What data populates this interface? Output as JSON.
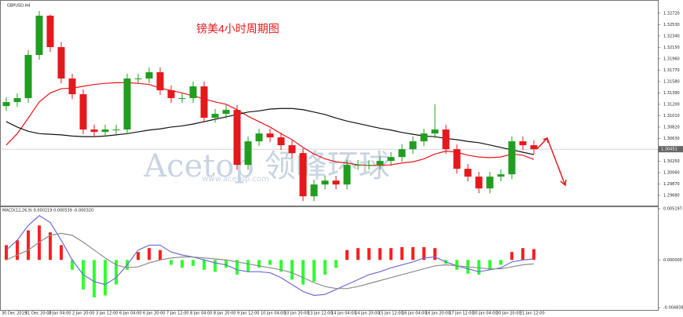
{
  "chart_data": [
    {
      "type": "candlestick",
      "symbol": "GBPUSD,H4",
      "title": "镑美4小时周期图",
      "watermark": "Acetop 领峰环球",
      "watermark_url": "www.acetop.com",
      "up_color": "#1f9e1f",
      "down_color": "#e3191c",
      "ylim": [
        1.2951,
        1.3294
      ],
      "yticks": [
        {
          "value": 1.3272,
          "label": "1.32720"
        },
        {
          "value": 1.3253,
          "label": "1.32530"
        },
        {
          "value": 1.3234,
          "label": "1.32340"
        },
        {
          "value": 1.3215,
          "label": "1.32150"
        },
        {
          "value": 1.3196,
          "label": "1.31960"
        },
        {
          "value": 1.3177,
          "label": "1.31770"
        },
        {
          "value": 1.3158,
          "label": "1.31580"
        },
        {
          "value": 1.3139,
          "label": "1.31390"
        },
        {
          "value": 1.312,
          "label": "1.31200"
        },
        {
          "value": 1.3101,
          "label": "1.31010"
        },
        {
          "value": 1.3082,
          "label": "1.30820"
        },
        {
          "value": 1.3063,
          "label": "1.30630"
        },
        {
          "value": 1.3044,
          "label": "1.30440"
        },
        {
          "value": 1.3025,
          "label": "1.30250"
        },
        {
          "value": 1.3006,
          "label": "1.30060"
        },
        {
          "value": 1.2987,
          "label": "1.29870"
        },
        {
          "value": 1.2968,
          "label": "1.29680"
        }
      ],
      "last_price": 1.30451,
      "open": [
        1.3117,
        1.31237,
        1.31303,
        1.32023,
        1.32678,
        1.32154,
        1.3163,
        1.31368,
        1.30779,
        1.30739,
        1.30779,
        1.30779,
        1.3163,
        1.3163,
        1.31735,
        1.31434,
        1.31303,
        1.31303,
        1.31499,
        1.30975,
        1.31041,
        1.31106,
        1.30189,
        1.30582,
        1.30713,
        1.30648,
        1.30517,
        1.30386,
        1.29665,
        1.29862,
        1.29927,
        1.29862,
        1.30189,
        1.30189,
        1.30189,
        1.30255,
        1.3032,
        1.30451,
        1.30582,
        1.30713,
        1.30779,
        1.30451,
        1.30124,
        1.29993,
        1.29796,
        1.29993,
        1.30032,
        1.30582,
        1.30517
      ],
      "high": [
        1.31317,
        1.31383,
        1.32103,
        1.32758,
        1.327,
        1.32234,
        1.3171,
        1.31448,
        1.30859,
        1.30859,
        1.30859,
        1.3171,
        1.3171,
        1.31815,
        1.31815,
        1.31514,
        1.31383,
        1.31579,
        1.31579,
        1.31121,
        1.31186,
        1.31186,
        1.30662,
        1.30793,
        1.30793,
        1.30728,
        1.30597,
        1.30466,
        1.29942,
        1.30007,
        1.30007,
        1.30269,
        1.30269,
        1.30269,
        1.30335,
        1.304,
        1.30531,
        1.30662,
        1.30793,
        1.312,
        1.30859,
        1.30531,
        1.30204,
        1.30073,
        1.30073,
        1.30112,
        1.30662,
        1.30662,
        1.30597
      ],
      "low": [
        1.3109,
        1.31157,
        1.31223,
        1.31943,
        1.32074,
        1.3155,
        1.31288,
        1.30699,
        1.30659,
        1.30659,
        1.30699,
        1.30699,
        1.3155,
        1.3155,
        1.31354,
        1.31223,
        1.31223,
        1.31223,
        1.30895,
        1.30895,
        1.30961,
        1.30109,
        1.30109,
        1.30502,
        1.30568,
        1.30437,
        1.30306,
        1.29585,
        1.29585,
        1.29782,
        1.29782,
        1.29782,
        1.30109,
        1.30109,
        1.30109,
        1.30175,
        1.3024,
        1.30371,
        1.30502,
        1.30633,
        1.30371,
        1.30044,
        1.29913,
        1.29716,
        1.29716,
        1.29913,
        1.29952,
        1.30437,
        1.30371
      ],
      "close": [
        1.31237,
        1.31303,
        1.32023,
        1.32678,
        1.32154,
        1.3163,
        1.31368,
        1.30779,
        1.30739,
        1.30779,
        1.30779,
        1.3163,
        1.3163,
        1.31735,
        1.31434,
        1.31303,
        1.31303,
        1.31499,
        1.30975,
        1.31041,
        1.31106,
        1.30189,
        1.30582,
        1.30713,
        1.30648,
        1.30517,
        1.30386,
        1.29665,
        1.29862,
        1.29927,
        1.29862,
        1.30189,
        1.30189,
        1.30189,
        1.30255,
        1.3032,
        1.30451,
        1.30582,
        1.30713,
        1.30779,
        1.30451,
        1.30124,
        1.29993,
        1.29796,
        1.29993,
        1.30032,
        1.30582,
        1.30517,
        1.30451
      ],
      "series": [
        {
          "color": "#e8141b",
          "values": [
            1.3052,
            1.3071,
            1.3097,
            1.3124,
            1.3139,
            1.3146,
            1.3147,
            1.315,
            1.3153,
            1.3155,
            1.3156,
            1.3156,
            1.3155,
            1.3153,
            1.3147,
            1.3143,
            1.3139,
            1.3134,
            1.3129,
            1.3124,
            1.312,
            1.3111,
            1.31,
            1.3091,
            1.3082,
            1.3071,
            1.3061,
            1.3048,
            1.3037,
            1.3029,
            1.3024,
            1.3022,
            1.3019,
            1.3018,
            1.3018,
            1.3019,
            1.3022,
            1.3024,
            1.3029,
            1.3037,
            1.3042,
            1.304,
            1.3035,
            1.3032,
            1.3031,
            1.3032,
            1.3037,
            1.3035,
            1.3028
          ]
        },
        {
          "color": "#111111",
          "values": [
            1.3091,
            1.3082,
            1.3075,
            1.3071,
            1.307,
            1.3069,
            1.3067,
            1.3066,
            1.3066,
            1.3067,
            1.3069,
            1.3071,
            1.3074,
            1.3077,
            1.3079,
            1.3082,
            1.3084,
            1.3087,
            1.3091,
            1.3095,
            1.3099,
            1.3103,
            1.3107,
            1.3109,
            1.3112,
            1.3113,
            1.3113,
            1.3111,
            1.3107,
            1.3103,
            1.3097,
            1.3092,
            1.3088,
            1.3084,
            1.308,
            1.3077,
            1.3073,
            1.307,
            1.3067,
            1.3066,
            1.3063,
            1.3061,
            1.3058,
            1.3056,
            1.3052,
            1.3048,
            1.3044,
            1.304,
            1.3036
          ]
        }
      ],
      "time_labels": [
        "30 Dec 2019",
        "31 Dec 20:00",
        "2 Jan 04:00",
        "2 Jan 20:00",
        "3 Jan 12:00",
        "6 Jan 04:00",
        "6 Jan 20:00",
        "7 Jan 12:00",
        "8 Jan 04:00",
        "8 Jan 20:00",
        "9 Jan 12:00",
        "10 Jan 04:00",
        "10 Jan 20:00",
        "13 Jan 12:00",
        "14 Jan 04:00",
        "14 Jan 20:00",
        "15 Jan 12:00",
        "16 Jan 04:00",
        "16 Jan 20:00",
        "17 Jan 12:00",
        "20 Jan 04:00",
        "20 Jan 20:00",
        "21 Jan 12:00"
      ]
    },
    {
      "type": "macd",
      "label": "MACD(12,26,9) 0.000219 0.000539 -0.000320",
      "ylim": [
        -0.004838,
        0.005197
      ],
      "yticks": [
        0.005197,
        {
          "value": 0,
          "label": "0.000000"
        },
        -0.004838
      ],
      "histogram": {
        "up_color": "#ff2020",
        "down_color": "#33ff33",
        "values": [
          0.0015,
          0.002,
          0.003,
          0.0035,
          0.0028,
          0.0015,
          -0.001,
          -0.003,
          -0.0038,
          -0.0036,
          -0.0025,
          -0.001,
          0.0008,
          0.0012,
          0.001,
          -0.0005,
          -0.0008,
          -0.0006,
          -0.001,
          -0.0012,
          -0.0008,
          -0.0015,
          -0.0012,
          -0.0008,
          -0.0005,
          -0.0012,
          -0.002,
          -0.0025,
          -0.0022,
          -0.0015,
          -0.0008,
          0.001,
          0.0012,
          0.0012,
          0.0012,
          0.0012,
          0.0013,
          0.0013,
          0.0013,
          0.0012,
          -0.0004,
          -0.001,
          -0.0014,
          -0.0015,
          -0.001,
          -0.0005,
          0.0008,
          0.0012,
          0.0011
        ]
      },
      "series": [
        {
          "color": "#6b6bd9",
          "values": [
            0.001,
            0.002,
            0.0035,
            0.0045,
            0.0038,
            0.002,
            0,
            -0.0015,
            -0.0022,
            -0.0025,
            -0.0018,
            -0.0005,
            0.001,
            0.0015,
            0.0015,
            0.0008,
            0.0005,
            0.0003,
            0,
            -0.0003,
            -0.0005,
            -0.001,
            -0.0012,
            -0.0012,
            -0.0013,
            -0.0018,
            -0.0025,
            -0.0032,
            -0.0036,
            -0.0035,
            -0.003,
            -0.0025,
            -0.002,
            -0.0015,
            -0.0012,
            -0.0008,
            -0.0005,
            -0.0002,
            0.0002,
            0.0003,
            -0.0002,
            -0.0006,
            -0.0009,
            -0.0012,
            -0.001,
            -0.0008,
            -0.0002,
            0,
            0.0001
          ]
        },
        {
          "color": "#8c8c8c",
          "values": [
            0,
            0.0005,
            0.001,
            0.0018,
            0.0025,
            0.0027,
            0.0025,
            0.0018,
            0.001,
            0.0002,
            -0.0005,
            -0.0008,
            -0.0007,
            -0.0003,
            0,
            0.0002,
            0.0003,
            0.0003,
            0.0002,
            0.0001,
            0,
            -0.0002,
            -0.0004,
            -0.0006,
            -0.0008,
            -0.001,
            -0.0013,
            -0.0018,
            -0.0023,
            -0.0027,
            -0.0029,
            -0.0029,
            -0.0027,
            -0.0024,
            -0.0021,
            -0.0018,
            -0.0015,
            -0.0012,
            -0.0009,
            -0.0006,
            -0.0005,
            -0.0006,
            -0.0007,
            -0.0008,
            -0.0009,
            -0.0009,
            -0.0007,
            -0.0005,
            -0.0004
          ]
        }
      ]
    }
  ]
}
